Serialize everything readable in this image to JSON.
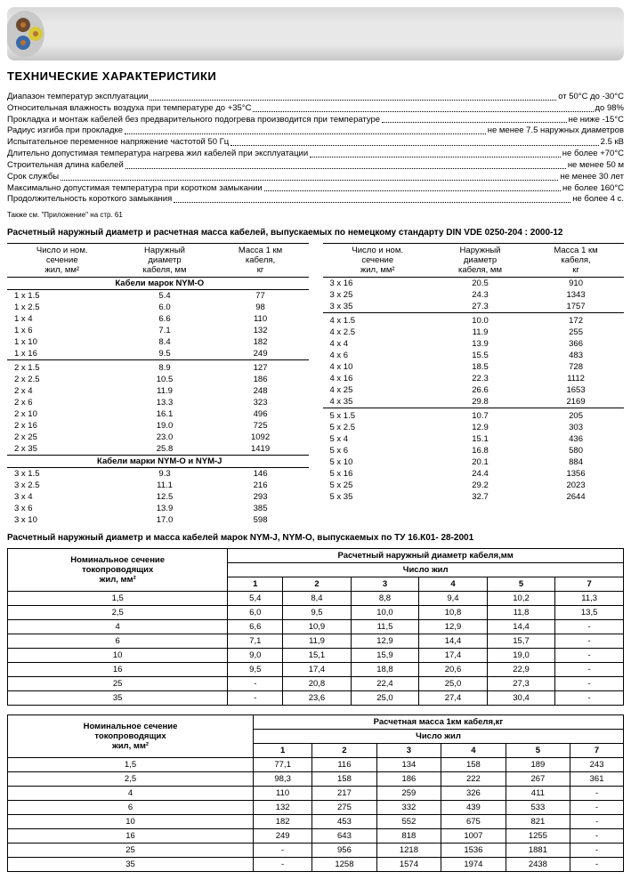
{
  "heading": "ТЕХНИЧЕСКИЕ ХАРАКТЕРИСТИКИ",
  "specs": [
    {
      "label": "Диапазон температур эксплуатации",
      "value": "от 50°C до -30°C"
    },
    {
      "label": "Относительная влажность воздуха при температуре до +35°C",
      "value": "до 98%"
    },
    {
      "label": "Прокладка и монтаж кабелей без предварительного подогрева производится при температуре",
      "value": "не ниже -15°C"
    },
    {
      "label": "Радиус изгиба при прокладке",
      "value": "не менее 7.5 наружных диаметров"
    },
    {
      "label": "Испытательное переменное напряжение частотой 50 Гц",
      "value": "2.5 кВ"
    },
    {
      "label": "Длительно допустимая температура нагрева жил кабелей при эксплуатации",
      "value": "не более +70°C"
    },
    {
      "label": "Строительная длина кабелей",
      "value": "не менее 50 м"
    },
    {
      "label": "Срок службы",
      "value": "не менее 30 лет"
    },
    {
      "label": "Максимально допустимая температура при коротком замыкании",
      "value": "не более 160°C"
    },
    {
      "label": "Продолжительность короткого замыкания",
      "value": "не более 4 с."
    }
  ],
  "footnote": "Также см. \"Приложение\" на стр. 61",
  "table1_title": "Расчетный наружный диаметр и расчетная масса кабелей, выпускаемых по немецкому стандарту DIN VDE 0250-204 : 2000-12",
  "columns1": [
    "Число и ном. сечение жил, мм²",
    "Наружный диаметр кабеля, мм",
    "Масса 1 км кабеля, кг"
  ],
  "group1": "Кабели марок NYM-O",
  "group2": "Кабели марки NYM-O и NYM-J",
  "left_rows": [
    {
      "g": "group1"
    },
    {
      "c": [
        "1 x 1.5",
        "5.4",
        "77"
      ]
    },
    {
      "c": [
        "1 x 2.5",
        "6.0",
        "98"
      ]
    },
    {
      "c": [
        "1 x 4",
        "6.6",
        "110"
      ]
    },
    {
      "c": [
        "1 x 6",
        "7.1",
        "132"
      ]
    },
    {
      "c": [
        "1 x 10",
        "8.4",
        "182"
      ]
    },
    {
      "c": [
        "1 x 16",
        "9.5",
        "249"
      ]
    },
    {
      "s": 1
    },
    {
      "c": [
        "2 x 1.5",
        "8.9",
        "127"
      ]
    },
    {
      "c": [
        "2 x 2.5",
        "10.5",
        "186"
      ]
    },
    {
      "c": [
        "2 x 4",
        "11.9",
        "248"
      ]
    },
    {
      "c": [
        "2 x 6",
        "13.3",
        "323"
      ]
    },
    {
      "c": [
        "2 x 10",
        "16.1",
        "496"
      ]
    },
    {
      "c": [
        "2 x 16",
        "19.0",
        "725"
      ]
    },
    {
      "c": [
        "2 x 25",
        "23.0",
        "1092"
      ]
    },
    {
      "c": [
        "2 x 35",
        "25.8",
        "1419"
      ]
    },
    {
      "g": "group2"
    },
    {
      "c": [
        "3 x 1.5",
        "9.3",
        "146"
      ]
    },
    {
      "c": [
        "3 x 2.5",
        "11.1",
        "216"
      ]
    },
    {
      "c": [
        "3 x 4",
        "12.5",
        "293"
      ]
    },
    {
      "c": [
        "3 x 6",
        "13.9",
        "385"
      ]
    },
    {
      "c": [
        "3 x 10",
        "17.0",
        "598"
      ]
    }
  ],
  "right_rows": [
    {
      "c": [
        "3 x 16",
        "20.5",
        "910"
      ]
    },
    {
      "c": [
        "3 x 25",
        "24.3",
        "1343"
      ]
    },
    {
      "c": [
        "3 x 35",
        "27.3",
        "1757"
      ]
    },
    {
      "s": 1
    },
    {
      "c": [
        "4 x 1.5",
        "10.0",
        "172"
      ]
    },
    {
      "c": [
        "4 x 2.5",
        "11.9",
        "255"
      ]
    },
    {
      "c": [
        "4 x 4",
        "13.9",
        "366"
      ]
    },
    {
      "c": [
        "4 x 6",
        "15.5",
        "483"
      ]
    },
    {
      "c": [
        "4 x 10",
        "18.5",
        "728"
      ]
    },
    {
      "c": [
        "4 x 16",
        "22.3",
        "1112"
      ]
    },
    {
      "c": [
        "4 x 25",
        "26.6",
        "1653"
      ]
    },
    {
      "c": [
        "4 x 35",
        "29.8",
        "2169"
      ]
    },
    {
      "s": 1
    },
    {
      "c": [
        "5 x 1.5",
        "10.7",
        "205"
      ]
    },
    {
      "c": [
        "5 x 2.5",
        "12.9",
        "303"
      ]
    },
    {
      "c": [
        "5 x 4",
        "15.1",
        "436"
      ]
    },
    {
      "c": [
        "5 x 6",
        "16.8",
        "580"
      ]
    },
    {
      "c": [
        "5 x 10",
        "20.1",
        "884"
      ]
    },
    {
      "c": [
        "5 x 16",
        "24.4",
        "1356"
      ]
    },
    {
      "c": [
        "5 x 25",
        "29.2",
        "2023"
      ]
    },
    {
      "c": [
        "5 x 35",
        "32.7",
        "2644"
      ]
    }
  ],
  "table2_title": "Расчетный наружный диаметр и масса кабелей марок NYM-J, NYM-O, выпускаемых по ТУ 16.К01- 28-2001",
  "wide_header_left": "Номинальное сечение токопроводящих жил, мм²",
  "wide_diam_title": "Расчетный наружный диаметр кабеля,мм",
  "wide_mass_title": "Расчетная масса 1км кабеля,кг",
  "wide_cores_title": "Число жил",
  "wide_cores": [
    "1",
    "2",
    "3",
    "4",
    "5",
    "7"
  ],
  "diam_rows": [
    [
      "1,5",
      "5,4",
      "8,4",
      "8,8",
      "9,4",
      "10,2",
      "11,3"
    ],
    [
      "2,5",
      "6,0",
      "9,5",
      "10,0",
      "10,8",
      "11,8",
      "13,5"
    ],
    [
      "4",
      "6,6",
      "10,9",
      "11,5",
      "12,9",
      "14,4",
      "-"
    ],
    [
      "6",
      "7,1",
      "11,9",
      "12,9",
      "14,4",
      "15,7",
      "-"
    ],
    [
      "10",
      "9,0",
      "15,1",
      "15,9",
      "17,4",
      "19,0",
      "-"
    ],
    [
      "16",
      "9,5",
      "17,4",
      "18,8",
      "20,6",
      "22,9",
      "-"
    ],
    [
      "25",
      "-",
      "20,8",
      "22,4",
      "25,0",
      "27,3",
      "-"
    ],
    [
      "35",
      "-",
      "23,6",
      "25,0",
      "27,4",
      "30,4",
      "-"
    ]
  ],
  "mass_rows": [
    [
      "1,5",
      "77,1",
      "116",
      "134",
      "158",
      "189",
      "243"
    ],
    [
      "2,5",
      "98,3",
      "158",
      "186",
      "222",
      "267",
      "361"
    ],
    [
      "4",
      "110",
      "217",
      "259",
      "326",
      "411",
      "-"
    ],
    [
      "6",
      "132",
      "275",
      "332",
      "439",
      "533",
      "-"
    ],
    [
      "10",
      "182",
      "453",
      "552",
      "675",
      "821",
      "-"
    ],
    [
      "16",
      "249",
      "643",
      "818",
      "1007",
      "1255",
      "-"
    ],
    [
      "25",
      "-",
      "956",
      "1218",
      "1536",
      "1881",
      "-"
    ],
    [
      "35",
      "-",
      "1258",
      "1574",
      "1974",
      "2438",
      "-"
    ]
  ],
  "colors": {
    "wire_brown": "#6d4a2f",
    "wire_blue": "#3a6aa8",
    "wire_yellow": "#d9c93a",
    "copper": "#b87333",
    "cable_body": "#e0e0e0"
  }
}
